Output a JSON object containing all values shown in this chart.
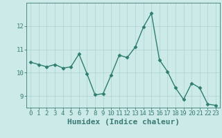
{
  "x": [
    0,
    1,
    2,
    3,
    4,
    5,
    6,
    7,
    8,
    9,
    10,
    11,
    12,
    13,
    14,
    15,
    16,
    17,
    18,
    19,
    20,
    21,
    22,
    23
  ],
  "y": [
    10.45,
    10.35,
    10.25,
    10.35,
    10.2,
    10.25,
    10.8,
    9.95,
    9.05,
    9.1,
    9.9,
    10.75,
    10.65,
    11.1,
    11.95,
    12.55,
    10.55,
    10.05,
    9.35,
    8.85,
    9.55,
    9.35,
    8.65,
    8.6
  ],
  "line_color": "#2e7d6e",
  "marker": "D",
  "marker_size": 2.5,
  "bg_color": "#cceae8",
  "grid_color": "#aed4d2",
  "xlabel": "Humidex (Indice chaleur)",
  "ylim": [
    8.5,
    13.0
  ],
  "xlim": [
    -0.5,
    23.5
  ],
  "yticks": [
    9,
    10,
    11,
    12
  ],
  "xticks": [
    0,
    1,
    2,
    3,
    4,
    5,
    6,
    7,
    8,
    9,
    10,
    11,
    12,
    13,
    14,
    15,
    16,
    17,
    18,
    19,
    20,
    21,
    22,
    23
  ],
  "axis_color": "#3a7a72",
  "tick_fontsize": 6.5,
  "xlabel_fontsize": 8,
  "linewidth": 1.0
}
